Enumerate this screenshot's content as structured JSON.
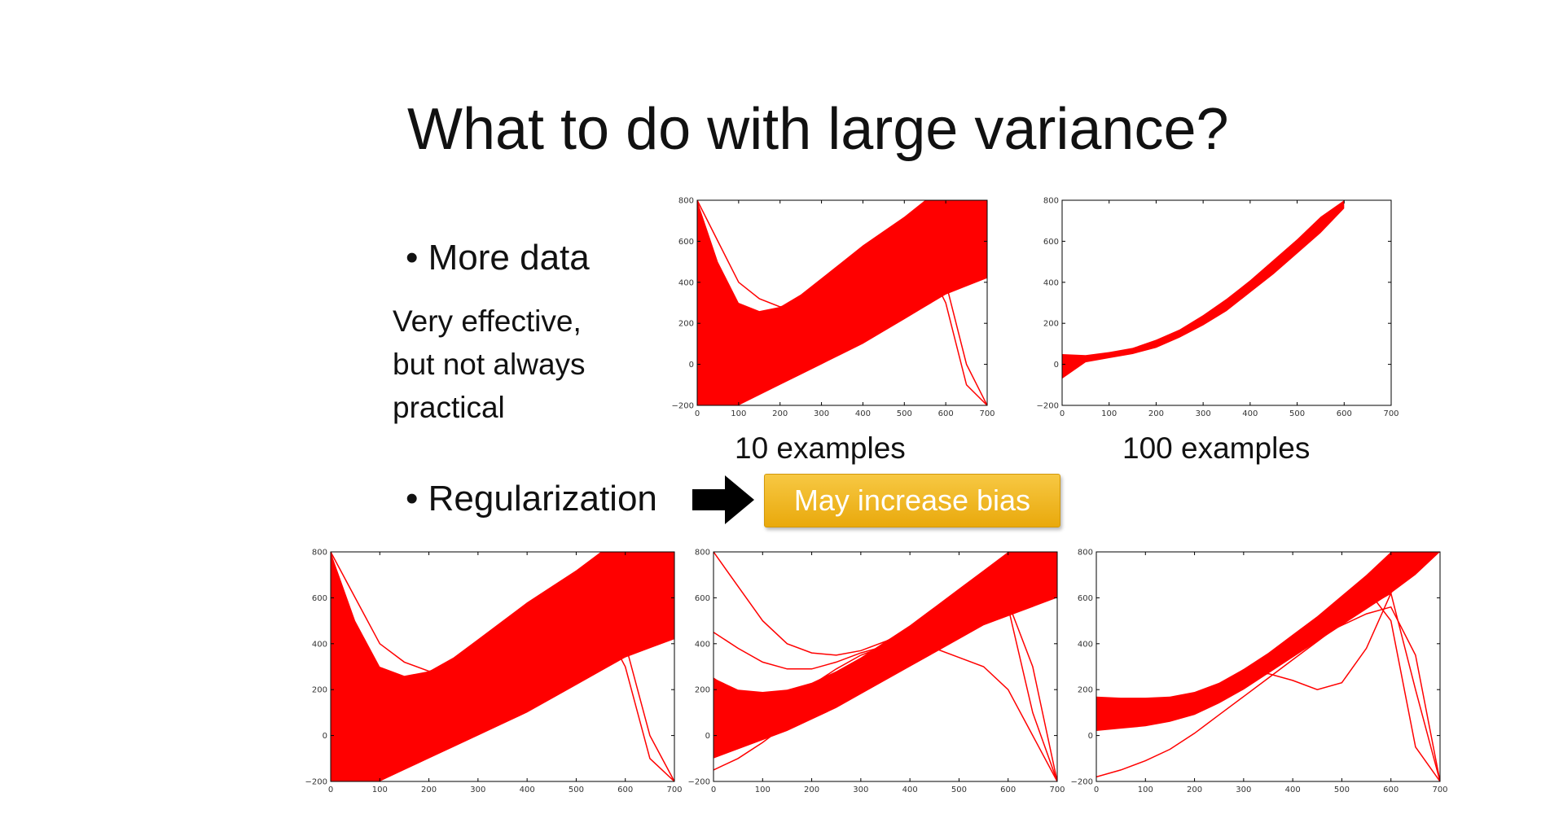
{
  "slide": {
    "title": "What to do with large variance?",
    "bullet_more_data": "• More data",
    "note_lines": [
      "Very effective,",
      "but not always",
      "practical"
    ],
    "bullet_regularization": "• Regularization",
    "callout": "May increase bias",
    "caption_10": "10 examples",
    "caption_100": "100 examples"
  },
  "colors": {
    "curve": "#ff0000",
    "callout": "#f0b323",
    "arrow": "#000000"
  },
  "chart_data": [
    {
      "id": "top-left",
      "type": "line",
      "description_label": "10 examples",
      "xlim": [
        0,
        700
      ],
      "ylim": [
        -200,
        800
      ],
      "xticks": [
        0,
        100,
        200,
        300,
        400,
        500,
        600,
        700
      ],
      "yticks": [
        -200,
        0,
        200,
        400,
        600,
        800
      ],
      "band": {
        "x": [
          0,
          50,
          100,
          150,
          200,
          250,
          300,
          350,
          400,
          450,
          500,
          550,
          600,
          650,
          700
        ],
        "low": [
          -200,
          -200,
          -200,
          -150,
          -100,
          -50,
          0,
          50,
          100,
          160,
          220,
          280,
          340,
          380,
          420
        ],
        "high": [
          800,
          500,
          300,
          260,
          280,
          340,
          420,
          500,
          580,
          650,
          720,
          800,
          800,
          800,
          800
        ]
      },
      "series": [
        {
          "values": [
            800,
            350,
            100,
            60,
            90,
            160,
            260,
            350,
            430,
            500,
            560,
            620,
            680,
            740,
            800
          ]
        },
        {
          "values": [
            800,
            600,
            400,
            320,
            280,
            300,
            340,
            380,
            420,
            460,
            520,
            600,
            700,
            800,
            800
          ]
        },
        {
          "values": [
            -200,
            -100,
            0,
            80,
            160,
            230,
            300,
            360,
            420,
            470,
            520,
            560,
            400,
            0,
            -200
          ]
        },
        {
          "values": [
            600,
            300,
            150,
            130,
            180,
            250,
            330,
            390,
            440,
            480,
            520,
            500,
            300,
            -100,
            -200
          ]
        },
        {
          "values": [
            -200,
            50,
            150,
            210,
            250,
            280,
            310,
            330,
            350,
            380,
            420,
            480,
            560,
            680,
            800
          ]
        }
      ]
    },
    {
      "id": "top-right",
      "type": "line",
      "description_label": "100 examples",
      "xlim": [
        0,
        700
      ],
      "ylim": [
        -200,
        800
      ],
      "xticks": [
        0,
        100,
        200,
        300,
        400,
        500,
        600,
        700
      ],
      "yticks": [
        -200,
        0,
        200,
        400,
        600,
        800
      ],
      "band": {
        "x": [
          0,
          50,
          100,
          150,
          200,
          250,
          300,
          350,
          400,
          450,
          500,
          550,
          600
        ],
        "low": [
          -70,
          10,
          30,
          50,
          80,
          130,
          190,
          260,
          350,
          440,
          540,
          640,
          760
        ],
        "high": [
          50,
          45,
          60,
          80,
          120,
          170,
          240,
          320,
          410,
          510,
          610,
          720,
          800
        ]
      },
      "series": []
    },
    {
      "id": "bottom-1",
      "type": "line",
      "xlim": [
        0,
        700
      ],
      "ylim": [
        -200,
        800
      ],
      "xticks": [
        0,
        100,
        200,
        300,
        400,
        500,
        600,
        700
      ],
      "yticks": [
        -200,
        0,
        200,
        400,
        600,
        800
      ],
      "band": {
        "x": [
          0,
          50,
          100,
          150,
          200,
          250,
          300,
          350,
          400,
          450,
          500,
          550,
          600,
          650,
          700
        ],
        "low": [
          -200,
          -200,
          -200,
          -150,
          -100,
          -50,
          0,
          50,
          100,
          160,
          220,
          280,
          340,
          380,
          420
        ],
        "high": [
          800,
          500,
          300,
          260,
          280,
          340,
          420,
          500,
          580,
          650,
          720,
          800,
          800,
          800,
          800
        ]
      },
      "series": [
        {
          "values": [
            800,
            350,
            100,
            60,
            90,
            160,
            260,
            350,
            430,
            500,
            560,
            620,
            680,
            740,
            800
          ]
        },
        {
          "values": [
            800,
            600,
            400,
            320,
            280,
            300,
            340,
            380,
            420,
            460,
            520,
            600,
            700,
            800,
            800
          ]
        },
        {
          "values": [
            -200,
            -100,
            0,
            80,
            160,
            230,
            300,
            360,
            420,
            470,
            520,
            560,
            400,
            0,
            -200
          ]
        },
        {
          "values": [
            600,
            300,
            150,
            130,
            180,
            250,
            330,
            390,
            440,
            480,
            520,
            500,
            300,
            -100,
            -200
          ]
        },
        {
          "values": [
            -200,
            50,
            150,
            210,
            250,
            280,
            310,
            330,
            350,
            380,
            420,
            480,
            560,
            680,
            800
          ]
        }
      ]
    },
    {
      "id": "bottom-2",
      "type": "line",
      "xlim": [
        0,
        700
      ],
      "ylim": [
        -200,
        800
      ],
      "xticks": [
        0,
        100,
        200,
        300,
        400,
        500,
        600,
        700
      ],
      "yticks": [
        -200,
        0,
        200,
        400,
        600,
        800
      ],
      "band": {
        "x": [
          0,
          50,
          100,
          150,
          200,
          250,
          300,
          350,
          400,
          450,
          500,
          550,
          600,
          650,
          700
        ],
        "low": [
          -100,
          -60,
          -20,
          20,
          70,
          120,
          180,
          240,
          300,
          360,
          420,
          480,
          520,
          560,
          600
        ],
        "high": [
          250,
          200,
          190,
          200,
          230,
          280,
          340,
          410,
          480,
          560,
          640,
          720,
          800,
          800,
          800
        ]
      },
      "series": [
        {
          "values": [
            800,
            650,
            500,
            400,
            360,
            350,
            370,
            410,
            460,
            520,
            590,
            660,
            560,
            100,
            -200
          ]
        },
        {
          "values": [
            450,
            380,
            320,
            290,
            290,
            320,
            360,
            390,
            400,
            380,
            340,
            300,
            200,
            0,
            -200
          ]
        },
        {
          "values": [
            -150,
            -100,
            -30,
            50,
            130,
            210,
            290,
            360,
            420,
            470,
            520,
            560,
            580,
            300,
            -200
          ]
        },
        {
          "values": [
            250,
            180,
            150,
            170,
            220,
            290,
            350,
            390,
            410,
            420,
            450,
            520,
            620,
            740,
            800
          ]
        }
      ]
    },
    {
      "id": "bottom-3",
      "type": "line",
      "xlim": [
        0,
        700
      ],
      "ylim": [
        -200,
        800
      ],
      "xticks": [
        0,
        100,
        200,
        300,
        400,
        500,
        600,
        700
      ],
      "yticks": [
        -200,
        0,
        200,
        400,
        600,
        800
      ],
      "band": {
        "x": [
          0,
          50,
          100,
          150,
          200,
          250,
          300,
          350,
          400,
          450,
          500,
          550,
          600,
          650,
          700
        ],
        "low": [
          20,
          30,
          40,
          60,
          90,
          140,
          200,
          270,
          340,
          410,
          480,
          550,
          620,
          700,
          800
        ],
        "high": [
          170,
          165,
          165,
          170,
          190,
          230,
          290,
          360,
          440,
          520,
          610,
          700,
          800,
          800,
          800
        ]
      },
      "series": [
        {
          "values": [
            150,
            150,
            150,
            160,
            180,
            220,
            280,
            350,
            420,
            500,
            580,
            640,
            500,
            -50,
            -200
          ]
        },
        {
          "values": [
            -180,
            -150,
            -110,
            -60,
            10,
            90,
            170,
            250,
            330,
            410,
            490,
            560,
            620,
            200,
            -200
          ]
        },
        {
          "values": [
            50,
            60,
            80,
            110,
            150,
            200,
            260,
            320,
            380,
            430,
            480,
            530,
            560,
            350,
            -200
          ]
        },
        {
          "values": [
            100,
            110,
            120,
            140,
            170,
            210,
            250,
            270,
            240,
            200,
            230,
            380,
            620,
            800,
            800
          ]
        }
      ]
    }
  ]
}
